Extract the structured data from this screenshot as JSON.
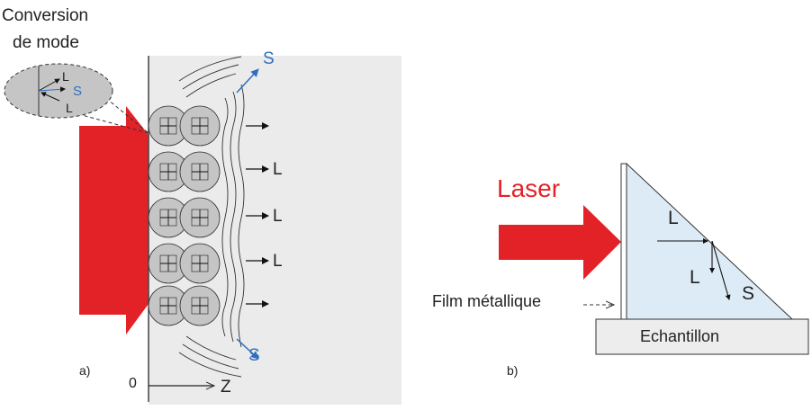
{
  "figure": {
    "panel_a": {
      "label": "a)",
      "callout_title_line1": "Conversion",
      "callout_title_line2": "de mode",
      "inset_labels": {
        "top": "L",
        "middle": "S",
        "bottom": "L"
      },
      "wave_labels": {
        "shear_top": "S",
        "long_1": "L",
        "long_2": "L",
        "long_3": "L",
        "shear_bottom": "S"
      },
      "axis": {
        "origin": "0",
        "direction": "Z"
      }
    },
    "panel_b": {
      "label": "b)",
      "laser": "Laser",
      "film": "Film métallique",
      "sample": "Echantillon",
      "labels": {
        "long_incident": "L",
        "long_reflected": "L",
        "shear": "S"
      }
    }
  },
  "colors": {
    "laser_red": "#e32228",
    "shear_arrow_blue": "#2f6fc0",
    "sample_fill": "#dcebf5",
    "medium_gray": "#ebebeb"
  }
}
